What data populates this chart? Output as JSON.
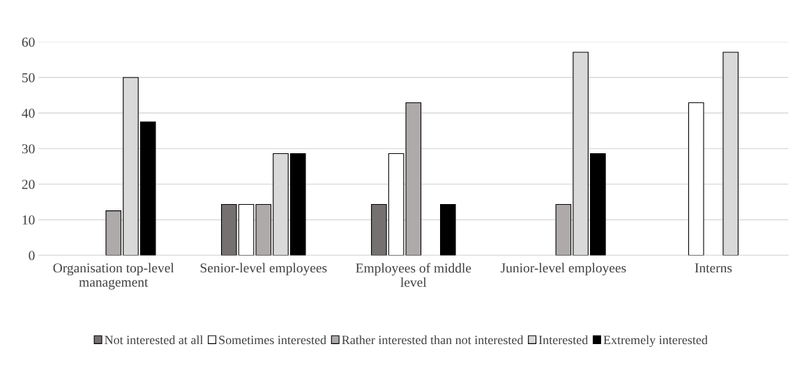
{
  "chart_data": {
    "type": "bar",
    "categories": [
      "Organisation top-level management",
      "Senior-level employees",
      "Employees of middle level",
      "Junior-level employees",
      "Interns"
    ],
    "series": [
      {
        "name": "Not interested at all",
        "color": "#767171",
        "values": [
          0,
          14.3,
          14.3,
          0,
          0
        ]
      },
      {
        "name": "Sometimes interested",
        "color": "#ffffff",
        "values": [
          0,
          14.3,
          28.6,
          0,
          42.9
        ]
      },
      {
        "name": "Rather interested than not interested",
        "color": "#aeaaaa",
        "values": [
          12.5,
          14.3,
          42.9,
          14.3,
          0
        ]
      },
      {
        "name": "Interested",
        "color": "#d9d9d9",
        "values": [
          50,
          28.6,
          0,
          57.1,
          57.1
        ]
      },
      {
        "name": "Extremely interested",
        "color": "#000000",
        "values": [
          37.5,
          28.6,
          14.3,
          28.6,
          0
        ]
      }
    ],
    "ylim": [
      0,
      60
    ],
    "yticks": [
      0,
      10,
      20,
      30,
      40,
      50,
      60
    ],
    "grid": "y",
    "legend": "bottom"
  }
}
